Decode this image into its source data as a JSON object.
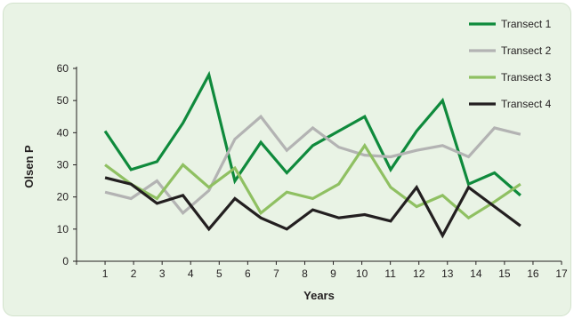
{
  "chart_data": {
    "type": "line",
    "title": "",
    "xlabel": "Years",
    "ylabel": "Olsen P",
    "x_ticks": [
      "1",
      "2",
      "3",
      "4",
      "5",
      "6",
      "7",
      "8",
      "9",
      "10",
      "11",
      "12",
      "13",
      "14",
      "15",
      "16",
      "17"
    ],
    "y_ticks": [
      "0",
      "10",
      "20",
      "30",
      "40",
      "50",
      "60"
    ],
    "ylim": [
      0,
      60
    ],
    "xlim": [
      0,
      17
    ],
    "grid": false,
    "legend_position": "top-right",
    "x": [
      1,
      1.91,
      2.82,
      3.73,
      4.64,
      5.55,
      6.46,
      7.37,
      8.28,
      9.19,
      10.1,
      11.01,
      11.92,
      12.83,
      13.74,
      14.65,
      15.56
    ],
    "series": [
      {
        "name": "Transect 1",
        "color": "#0f8a3c",
        "values": [
          40.5,
          28.5,
          31,
          43,
          58,
          25,
          37,
          27.5,
          36,
          40.5,
          45,
          28.5,
          40.5,
          50,
          24,
          27.5,
          20.5
        ]
      },
      {
        "name": "Transect 2",
        "color": "#b3b3b3",
        "values": [
          21.5,
          19.5,
          25,
          15,
          22,
          38,
          45,
          34.5,
          41.5,
          35.5,
          33,
          32.5,
          34.5,
          36,
          32.5,
          41.5,
          39.5
        ]
      },
      {
        "name": "Transect 3",
        "color": "#8fc062",
        "values": [
          30,
          24,
          19.5,
          30,
          23,
          29,
          15,
          21.5,
          19.5,
          24,
          36,
          23,
          17,
          20.5,
          13.5,
          18.5,
          24
        ]
      },
      {
        "name": "Transect 4",
        "color": "#231f20",
        "values": [
          26,
          24,
          18,
          20.5,
          10,
          19.5,
          13.5,
          10,
          16,
          13.5,
          14.5,
          12.5,
          23,
          8,
          23,
          17,
          11
        ]
      }
    ]
  }
}
